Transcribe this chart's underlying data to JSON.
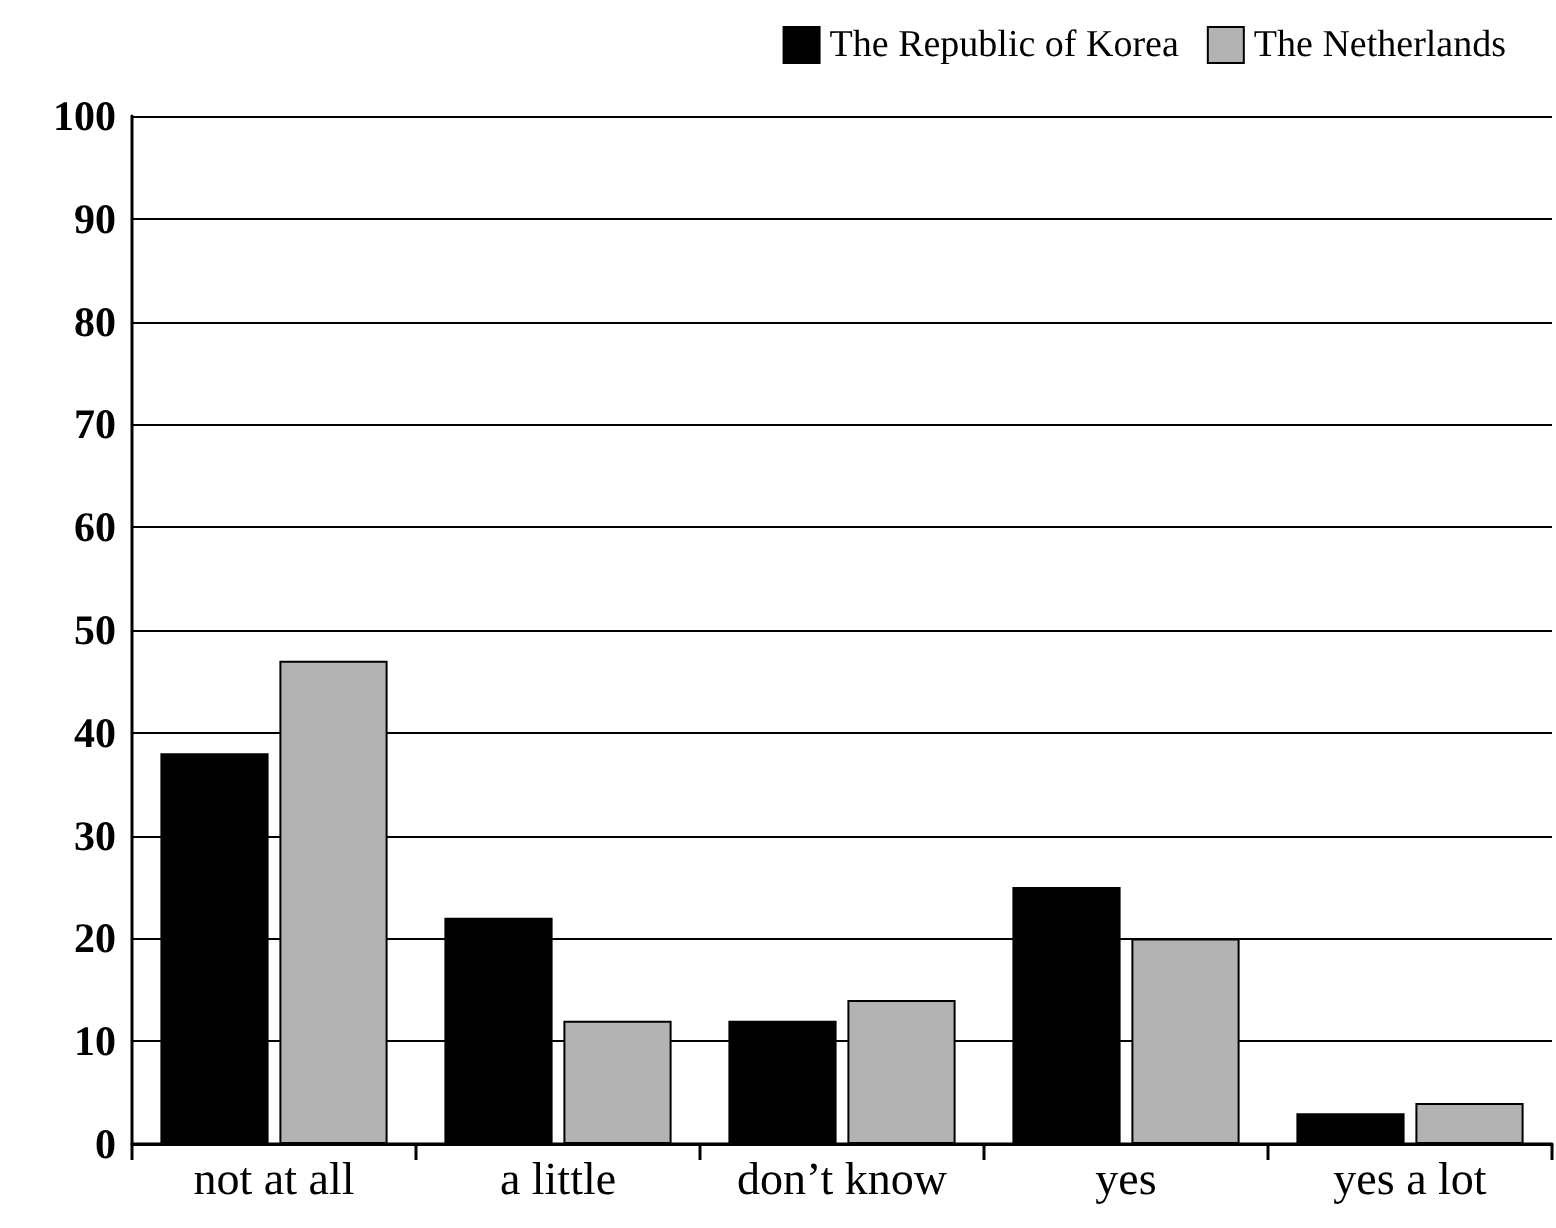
{
  "chart_data": {
    "type": "bar",
    "categories": [
      "not at all",
      "a little",
      "don’t know",
      "yes",
      "yes a lot"
    ],
    "series": [
      {
        "name": "The Republic of Korea",
        "color": "#000000",
        "values": [
          38,
          22,
          12,
          25,
          3
        ]
      },
      {
        "name": "The Netherlands",
        "color": "#b3b3b3",
        "values": [
          47,
          12,
          14,
          20,
          4
        ]
      }
    ],
    "ylim": [
      0,
      100
    ],
    "yticks": [
      0,
      10,
      20,
      30,
      40,
      50,
      60,
      70,
      80,
      90,
      100
    ],
    "grid": "y",
    "legend": "top right"
  }
}
